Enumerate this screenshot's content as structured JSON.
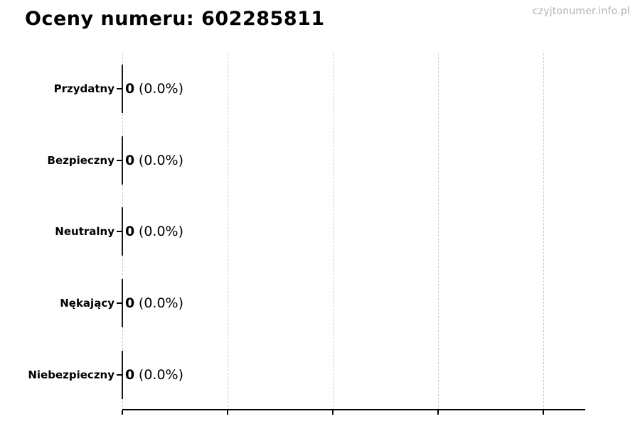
{
  "page": {
    "watermark": "czyjtonumer.info.pl"
  },
  "chart_data": {
    "type": "bar",
    "orientation": "horizontal",
    "title": "Oceny numeru: 602285811",
    "categories": [
      "Przydatny",
      "Bezpieczny",
      "Neutralny",
      "Nękający",
      "Niebezpieczny"
    ],
    "values": [
      0,
      0,
      0,
      0,
      0
    ],
    "value_labels": [
      "0 (0.0%)",
      "0 (0.0%)",
      "0 (0.0%)",
      "0 (0.0%)",
      "0 (0.0%)"
    ],
    "rows": [
      {
        "label": "Przydatny",
        "count": "0",
        "pct": "(0.0%)"
      },
      {
        "label": "Bezpieczny",
        "count": "0",
        "pct": "(0.0%)"
      },
      {
        "label": "Neutralny",
        "count": "0",
        "pct": "(0.0%)"
      },
      {
        "label": "Nękający",
        "count": "0",
        "pct": "(0.0%)"
      },
      {
        "label": "Niebezpieczny",
        "count": "0",
        "pct": "(0.0%)"
      }
    ],
    "xlabel": "",
    "ylabel": "",
    "xlim_note": "all values zero; 5 unlabeled x ticks, tick labels cropped off at image bottom",
    "grid": "vertical-dashed",
    "legend": "none",
    "colors": {
      "background": "#ffffff",
      "title": "#000000",
      "category_label": "#000000",
      "value_text": "#000000",
      "gridline": "#cccccc",
      "axis": "#000000",
      "bar_edge": "#1a1a1a",
      "watermark": "#b3b3b3"
    }
  }
}
